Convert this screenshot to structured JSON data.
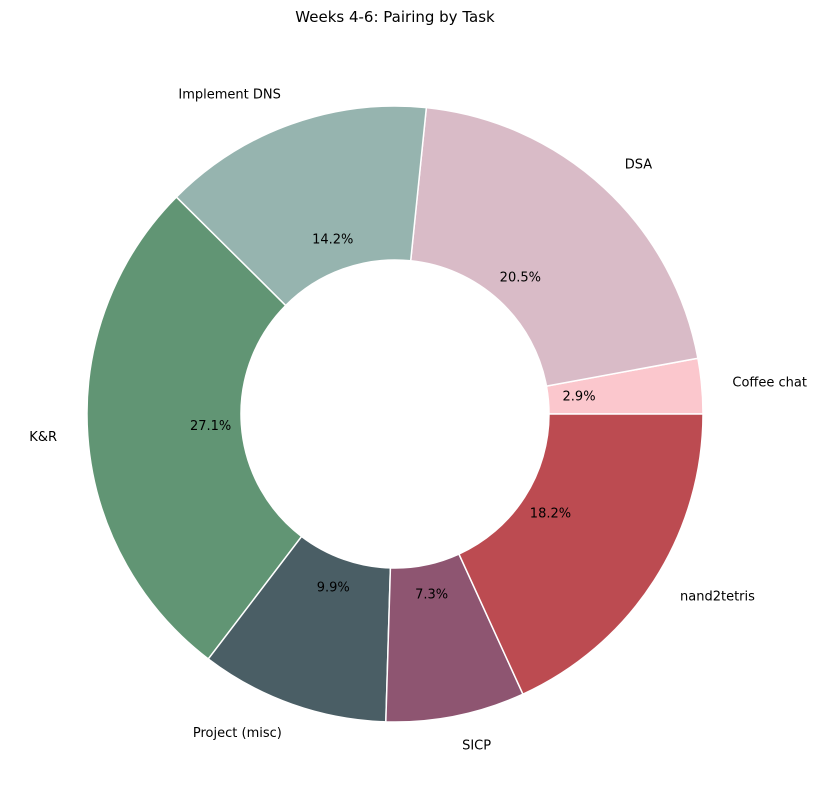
{
  "chart_data": {
    "type": "pie",
    "donut": true,
    "title": "Weeks 4-6: Pairing by Task",
    "start_angle_deg": 0,
    "direction": "counterclockwise",
    "slices": [
      {
        "label": "Coffee chat",
        "value": 2.9,
        "pct_text": "2.9%",
        "color": "#fbc7cd"
      },
      {
        "label": "DSA",
        "value": 20.5,
        "pct_text": "20.5%",
        "color": "#d9bbc7"
      },
      {
        "label": "Implement DNS",
        "value": 14.2,
        "pct_text": "14.2%",
        "color": "#96b4af"
      },
      {
        "label": "K&R",
        "value": 27.1,
        "pct_text": "27.1%",
        "color": "#619574"
      },
      {
        "label": "Project (misc)",
        "value": 9.9,
        "pct_text": "9.9%",
        "color": "#4a5e65"
      },
      {
        "label": "SICP",
        "value": 7.3,
        "pct_text": "7.3%",
        "color": "#8e5571"
      },
      {
        "label": "nand2tetris",
        "value": 18.2,
        "pct_text": "18.2%",
        "color": "#bc4b51"
      }
    ]
  }
}
